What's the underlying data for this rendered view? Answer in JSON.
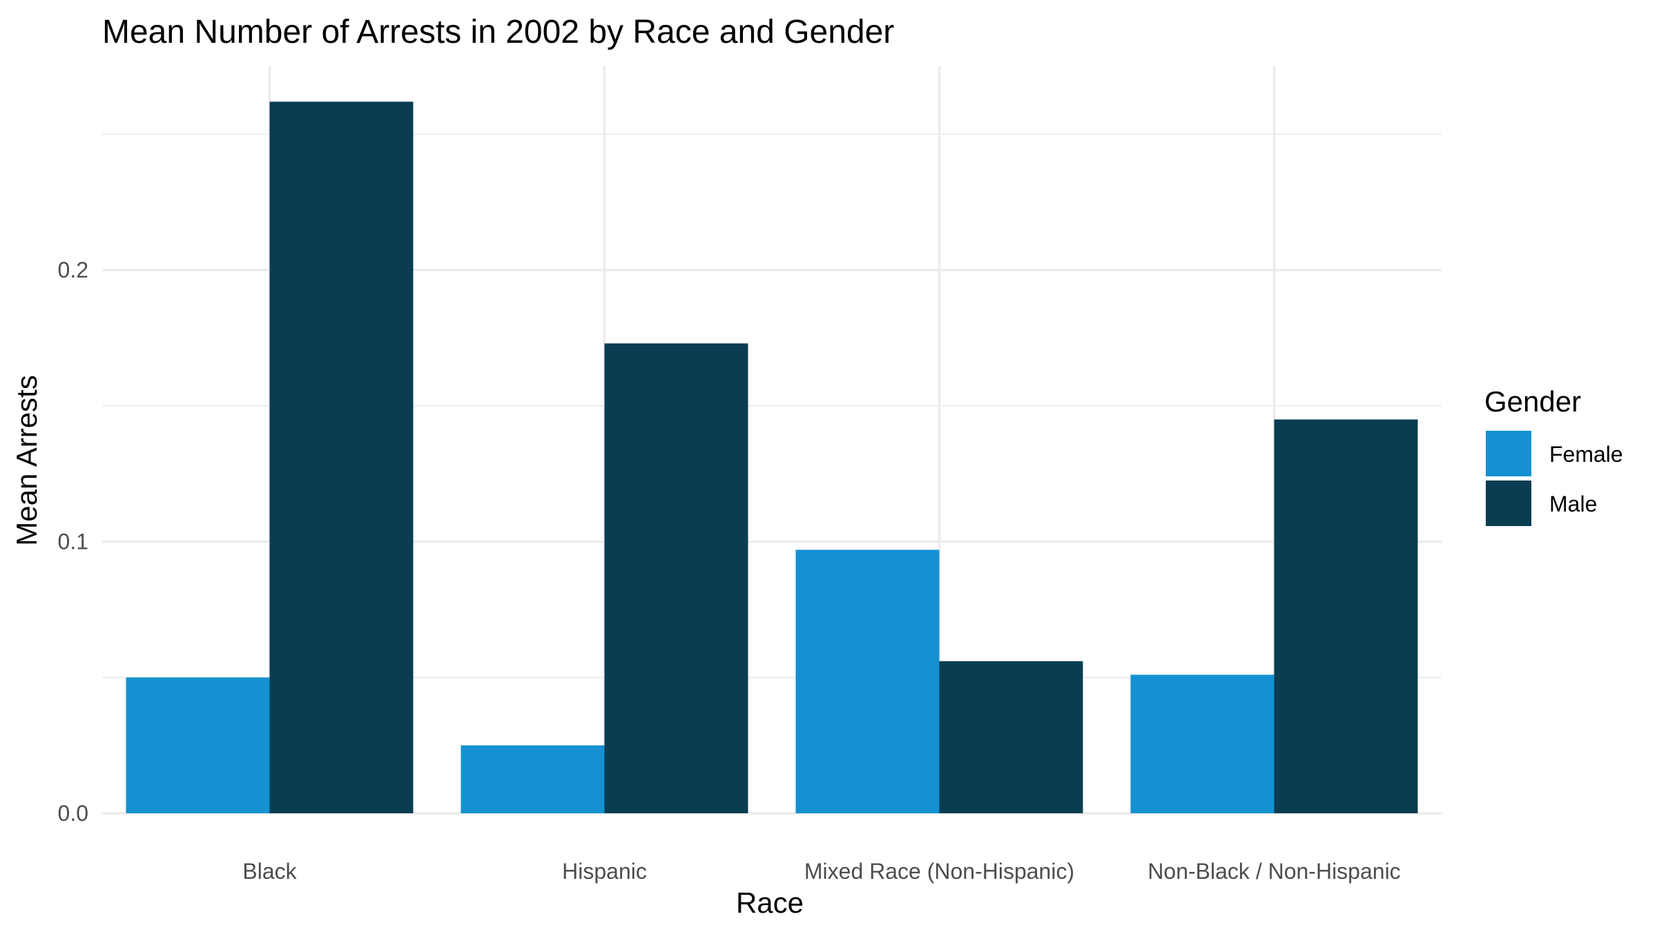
{
  "chart_data": {
    "type": "bar",
    "title": "Mean Number of Arrests in 2002 by Race and Gender",
    "xlabel": "Race",
    "ylabel": "Mean Arrests",
    "categories": [
      "Black",
      "Hispanic",
      "Mixed Race (Non-Hispanic)",
      "Non-Black / Non-Hispanic"
    ],
    "series": [
      {
        "name": "Female",
        "color": "#1591d1",
        "values": [
          0.05,
          0.025,
          0.097,
          0.051
        ]
      },
      {
        "name": "Male",
        "color": "#0a3d52",
        "values": [
          0.262,
          0.173,
          0.056,
          0.145
        ]
      }
    ],
    "ylim": [
      0,
      0.275
    ],
    "yticks": [
      0.0,
      0.1,
      0.2
    ],
    "ytick_labels": [
      "0.0",
      "0.1",
      "0.2"
    ],
    "grid": true,
    "legend": {
      "title": "Gender",
      "position": "right"
    }
  }
}
